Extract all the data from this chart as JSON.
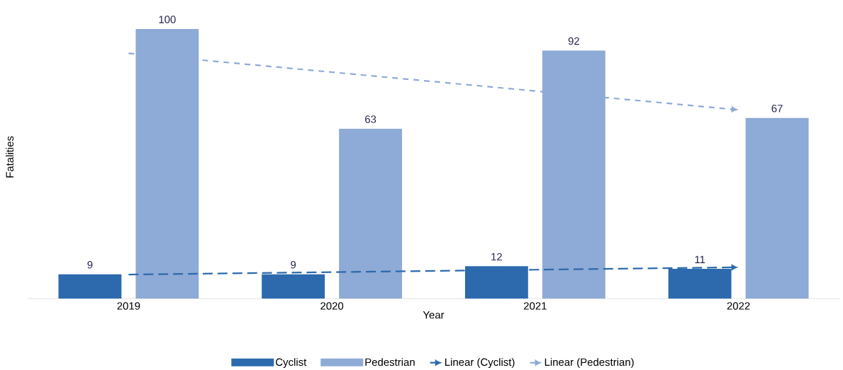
{
  "chart_data": {
    "type": "bar",
    "xlabel": "Year",
    "ylabel": "Fatalities",
    "categories": [
      "2019",
      "2020",
      "2021",
      "2022"
    ],
    "series": [
      {
        "name": "Cyclist",
        "color": "#2c6aad",
        "values": [
          9,
          9,
          12,
          11
        ],
        "value_labels": [
          "9",
          "9",
          "12",
          "11"
        ]
      },
      {
        "name": "Pedestrian",
        "color": "#8eaad6",
        "values": [
          100,
          63,
          92,
          67
        ],
        "value_labels": [
          "100",
          "63",
          "92",
          "67"
        ]
      },
      {
        "name": "Linear (Cyclist)",
        "type": "line",
        "color": "#2c6aad",
        "line_style": "dashed",
        "values": [
          8.9,
          9.8,
          10.7,
          11.6
        ]
      },
      {
        "name": "Linear (Pedestrian)",
        "type": "line",
        "color": "#8eaad6",
        "line_style": "dashed",
        "values": [
          91,
          84,
          77,
          70
        ]
      }
    ],
    "tick_labels": "x",
    "legend": "bottom",
    "marker": "none"
  }
}
